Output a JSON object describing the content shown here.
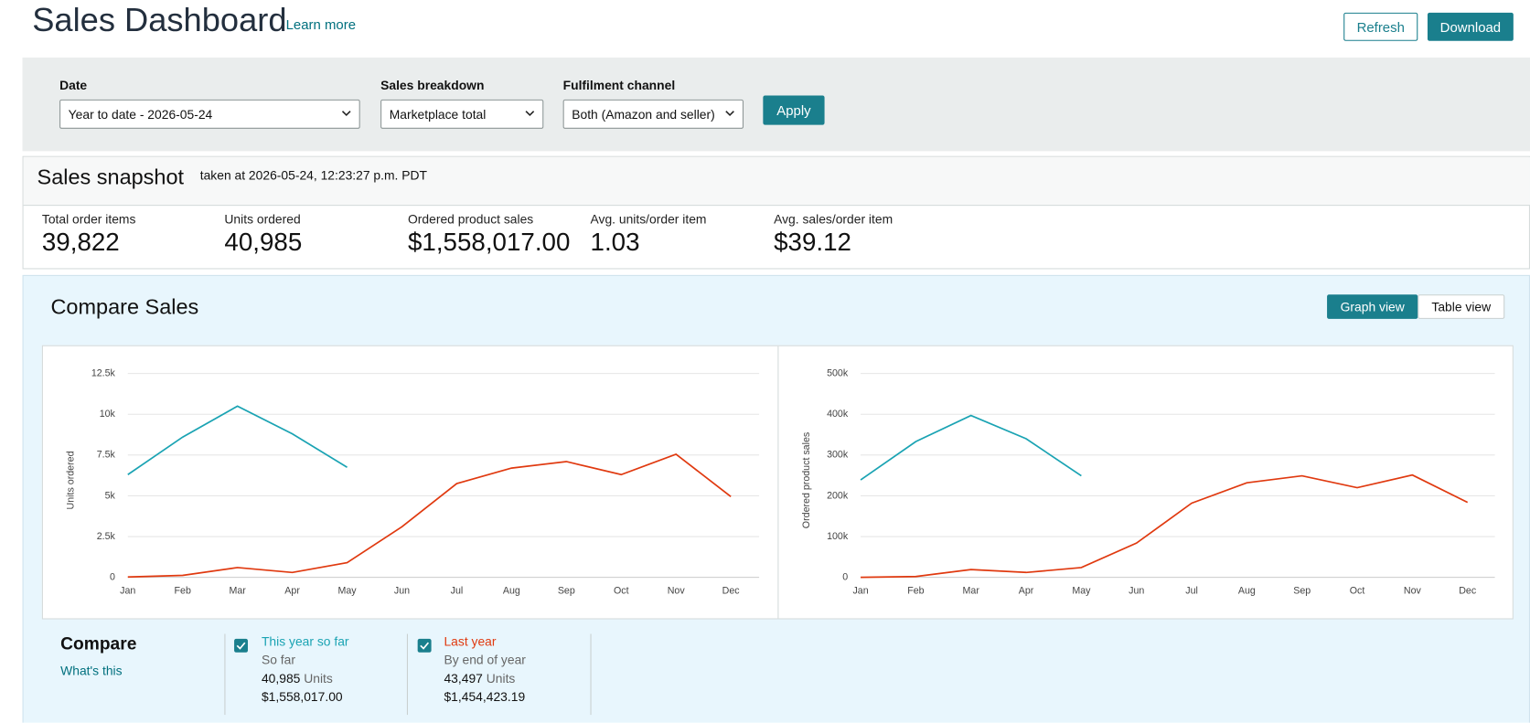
{
  "header": {
    "title": "Sales Dashboard",
    "learn_more": "Learn more",
    "buttons": [
      "Refresh",
      "Download"
    ]
  },
  "filters": {
    "items": [
      {
        "label": "Date",
        "value": "Year to date - 2026-05-24"
      },
      {
        "label": "Sales breakdown",
        "value": "Marketplace total"
      },
      {
        "label": "Fulfilment channel",
        "value": "Both (Amazon and seller)"
      }
    ],
    "apply": "Apply"
  },
  "snapshot": {
    "title": "Sales snapshot",
    "timestamp": "taken at 2026-05-24, 12:23:27 p.m. PDT",
    "metrics": [
      {
        "label": "Total order items",
        "value": "39,822"
      },
      {
        "label": "Units ordered",
        "value": "40,985"
      },
      {
        "label": "Ordered product sales",
        "value": "$1,558,017.00"
      },
      {
        "label": "Avg. units/order item",
        "value": "1.03"
      },
      {
        "label": "Avg. sales/order item",
        "value": "$39.12"
      }
    ]
  },
  "compare": {
    "title": "Compare Sales",
    "views": [
      "Graph view",
      "Table view"
    ],
    "heading": "Compare",
    "whats_this": "What's this",
    "columns": [
      {
        "period": "So far",
        "units": "40,985",
        "unit_label": "Units",
        "sales": "$1,558,017.00"
      },
      {
        "period": "By end of year",
        "units": "43,497",
        "unit_label": "Units",
        "sales": "$1,454,423.19"
      }
    ]
  },
  "chart_data": [
    {
      "type": "line",
      "ylabel": "Units ordered",
      "categories": [
        "Jan",
        "Feb",
        "Mar",
        "Apr",
        "May",
        "Jun",
        "Jul",
        "Aug",
        "Sep",
        "Oct",
        "Nov",
        "Dec"
      ],
      "series": [
        {
          "name": "This year so far",
          "color": "#1aa3b3",
          "values": [
            6300,
            8600,
            10500,
            8800,
            6750,
            null,
            null,
            null,
            null,
            null,
            null,
            null
          ]
        },
        {
          "name": "Last year",
          "color": "#e0390f",
          "values": [
            20,
            120,
            600,
            300,
            900,
            3100,
            5750,
            6700,
            7100,
            6300,
            7550,
            4950
          ]
        }
      ],
      "ylim": [
        0,
        12500
      ],
      "yticks": [
        0,
        {
          "value": 2500,
          "label": "2.5k"
        },
        {
          "value": 5000,
          "label": "5k"
        },
        {
          "value": 7500,
          "label": "7.5k"
        },
        {
          "value": 10000,
          "label": "10k"
        },
        {
          "value": 12500,
          "label": "12.5k"
        }
      ],
      "grid": true
    },
    {
      "type": "line",
      "ylabel": "Ordered product sales",
      "categories": [
        "Jan",
        "Feb",
        "Mar",
        "Apr",
        "May",
        "Jun",
        "Jul",
        "Aug",
        "Sep",
        "Oct",
        "Nov",
        "Dec"
      ],
      "series": [
        {
          "color": "#1aa3b3",
          "values": [
            239000,
            333000,
            397000,
            340000,
            249000,
            null,
            null,
            null,
            null,
            null,
            null,
            null
          ]
        },
        {
          "color": "#e0390f",
          "values": [
            0,
            2000,
            19000,
            12000,
            24000,
            84000,
            182000,
            232000,
            249000,
            220000,
            251000,
            184000
          ]
        }
      ],
      "ylim": [
        0,
        500000
      ],
      "yticks": [
        0,
        {
          "value": 100000,
          "label": "100k"
        },
        {
          "value": 200000,
          "label": "200k"
        },
        {
          "value": 300000,
          "label": "300k"
        },
        {
          "value": 400000,
          "label": "400k"
        },
        {
          "value": 500000,
          "label": "500k"
        }
      ],
      "grid": true
    }
  ]
}
